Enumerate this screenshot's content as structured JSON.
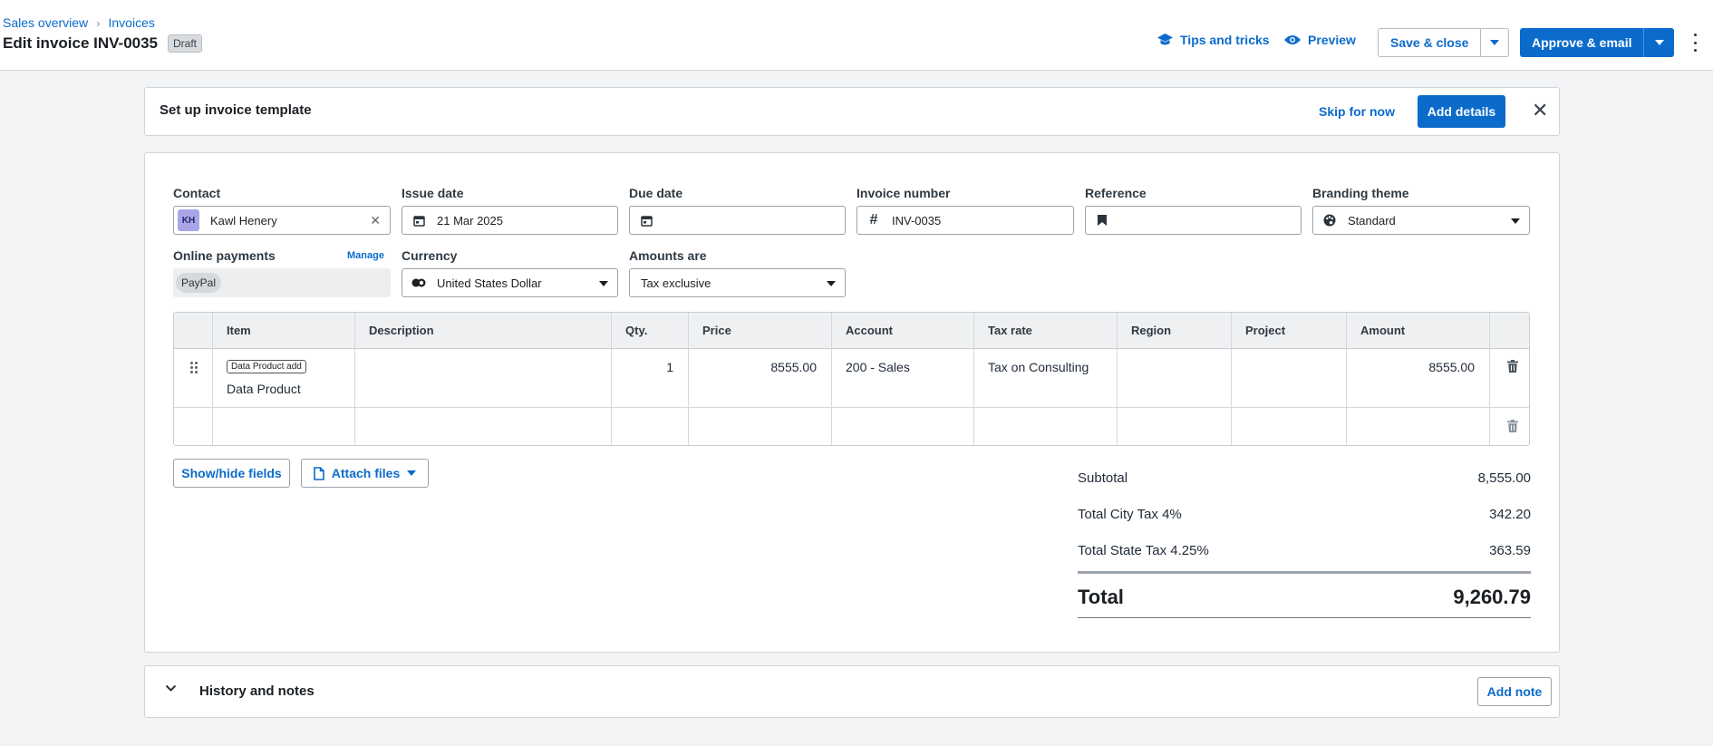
{
  "breadcrumbs": [
    "Sales overview",
    "Invoices"
  ],
  "page_title": "Edit invoice INV-0035",
  "status_badge": "Draft",
  "header_actions": {
    "tips": "Tips and tricks",
    "preview": "Preview",
    "save_close": "Save & close",
    "approve_email": "Approve & email"
  },
  "banner": {
    "title": "Set up invoice template",
    "skip": "Skip for now",
    "add_details": "Add details"
  },
  "form": {
    "contact": {
      "label": "Contact",
      "initials": "KH",
      "value": "Kawl Henery"
    },
    "issue_date": {
      "label": "Issue date",
      "value": "21 Mar 2025"
    },
    "due_date": {
      "label": "Due date",
      "value": ""
    },
    "invoice_number": {
      "label": "Invoice number",
      "value": "INV-0035"
    },
    "reference": {
      "label": "Reference",
      "value": ""
    },
    "branding_theme": {
      "label": "Branding theme",
      "value": "Standard"
    },
    "online_payments": {
      "label": "Online payments",
      "manage": "Manage",
      "method": "PayPal"
    },
    "currency": {
      "label": "Currency",
      "value": "United States Dollar"
    },
    "amounts_are": {
      "label": "Amounts are",
      "value": "Tax exclusive"
    }
  },
  "table": {
    "headers": [
      "Item",
      "Description",
      "Qty.",
      "Price",
      "Account",
      "Tax rate",
      "Region",
      "Project",
      "Amount"
    ],
    "rows": [
      {
        "item_tag": "Data Product add",
        "item": "Data Product",
        "description": "",
        "qty": "1",
        "price": "8555.00",
        "account": "200 - Sales",
        "tax_rate": "Tax on Consulting",
        "region": "",
        "project": "",
        "amount": "8555.00"
      }
    ]
  },
  "buttons": {
    "show_hide": "Show/hide fields",
    "attach": "Attach files"
  },
  "totals": {
    "subtotal_label": "Subtotal",
    "subtotal": "8,555.00",
    "city_tax_label": "Total City Tax 4%",
    "city_tax": "342.20",
    "state_tax_label": "Total State Tax 4.25%",
    "state_tax": "363.59",
    "total_label": "Total",
    "total": "9,260.79"
  },
  "history": {
    "title": "History and notes",
    "add_note": "Add note"
  },
  "colors": {
    "accent": "#0b6bcb",
    "background": "#f2f3f5"
  }
}
